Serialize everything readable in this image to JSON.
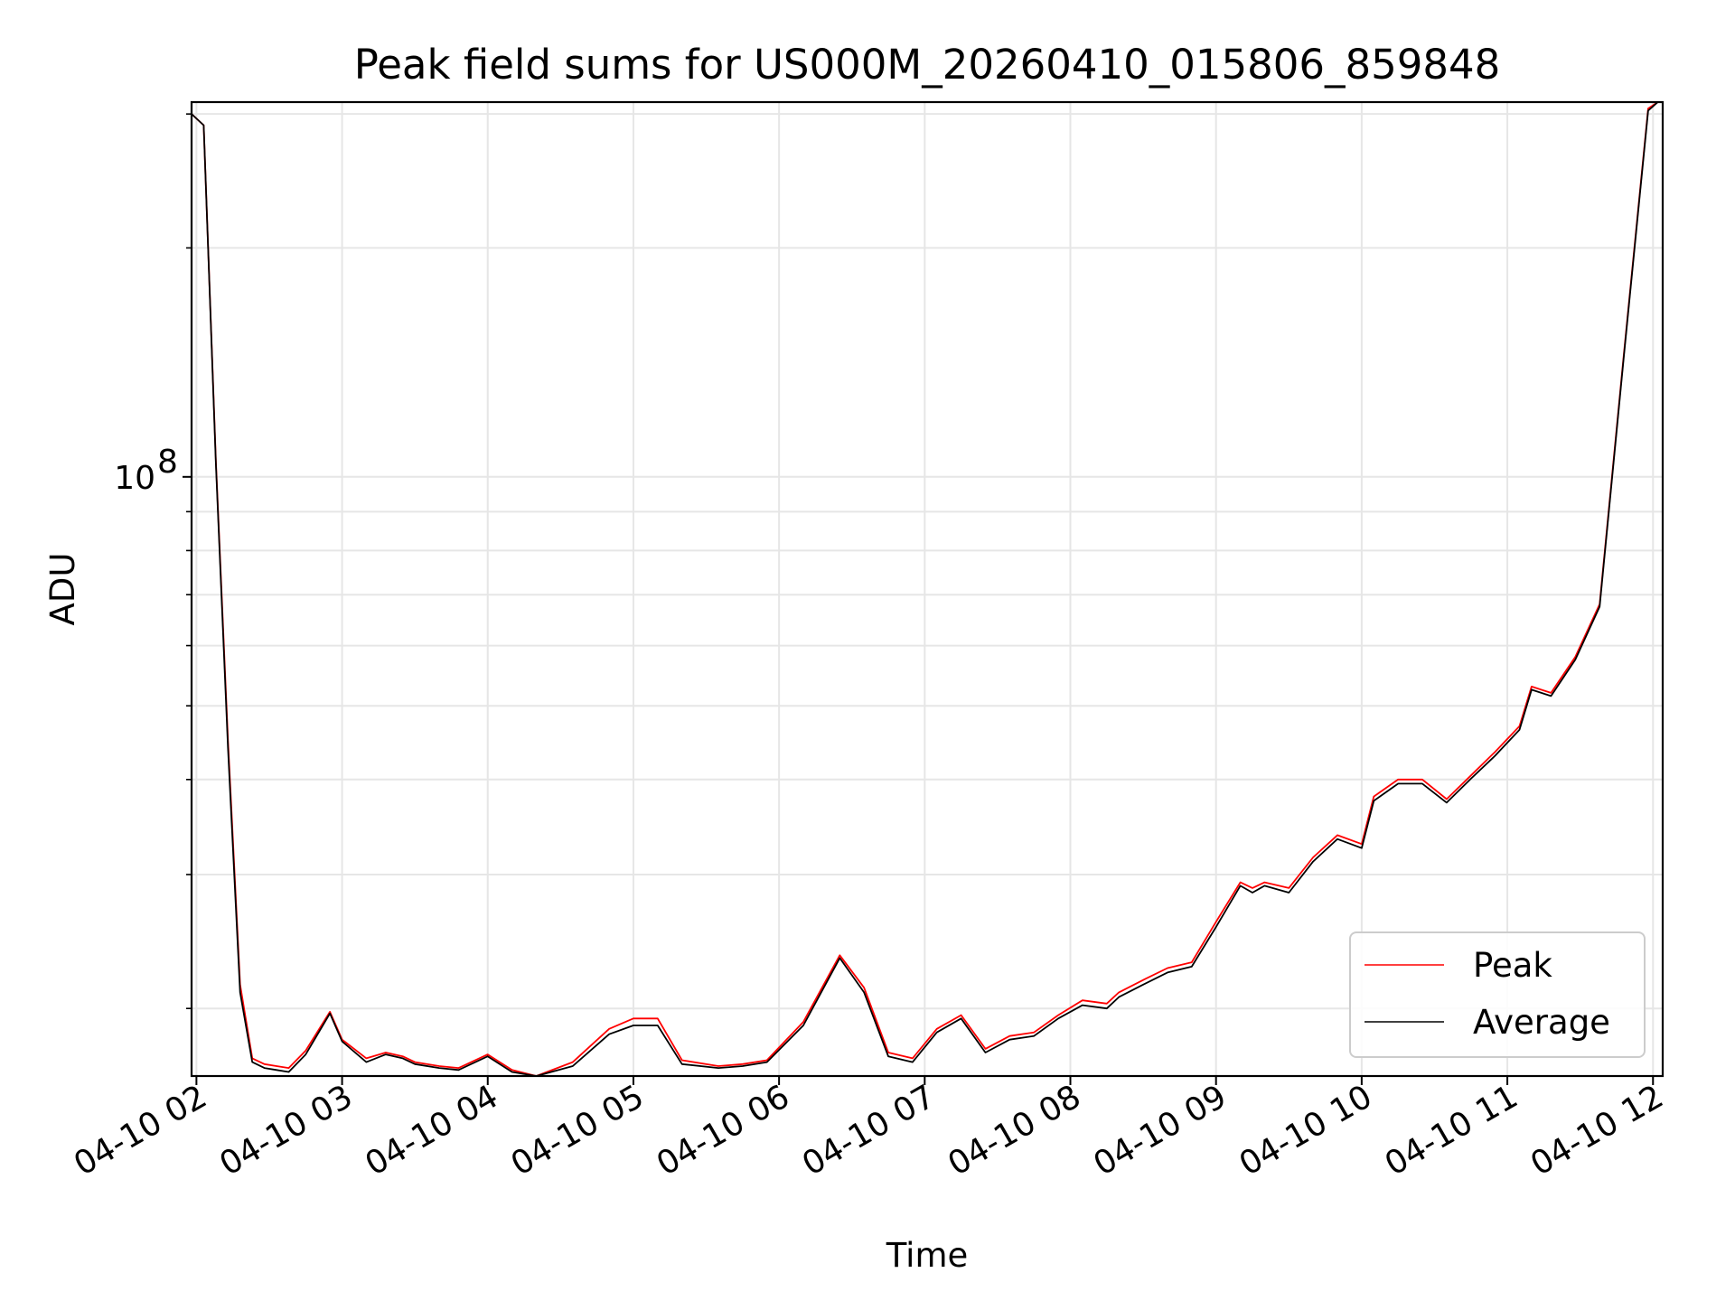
{
  "chart_data": {
    "type": "line",
    "title": "Peak field sums for US000M_20260410_015806_859848",
    "xlabel": "Time",
    "ylabel": "ADU",
    "y_scale": "log",
    "ylim": [
      16300000,
      311000000
    ],
    "xlim": [
      "2026-04-10 01:58",
      "2026-04-10 12:04"
    ],
    "x_tick_labels": [
      "04-10 02",
      "04-10 03",
      "04-10 04",
      "04-10 05",
      "04-10 06",
      "04-10 07",
      "04-10 08",
      "04-10 09",
      "04-10 10",
      "04-10 11",
      "04-10 12"
    ],
    "x_tick_times": [
      "2026-04-10 02:00",
      "2026-04-10 03:00",
      "2026-04-10 04:00",
      "2026-04-10 05:00",
      "2026-04-10 06:00",
      "2026-04-10 07:00",
      "2026-04-10 08:00",
      "2026-04-10 09:00",
      "2026-04-10 10:00",
      "2026-04-10 11:00",
      "2026-04-10 12:00"
    ],
    "y_tick_label": "10",
    "y_tick_exponent": "8",
    "y_tick_value": 100000000,
    "grid": true,
    "legend_position": "lower-right",
    "x": [
      "2026-04-10 01:58",
      "2026-04-10 02:03",
      "2026-04-10 02:08",
      "2026-04-10 02:13",
      "2026-04-10 02:18",
      "2026-04-10 02:23",
      "2026-04-10 02:28",
      "2026-04-10 02:33",
      "2026-04-10 02:38",
      "2026-04-10 02:45",
      "2026-04-10 02:55",
      "2026-04-10 03:00",
      "2026-04-10 03:10",
      "2026-04-10 03:18",
      "2026-04-10 03:25",
      "2026-04-10 03:30",
      "2026-04-10 03:40",
      "2026-04-10 03:48",
      "2026-04-10 04:00",
      "2026-04-10 04:10",
      "2026-04-10 04:20",
      "2026-04-10 04:35",
      "2026-04-10 04:50",
      "2026-04-10 05:00",
      "2026-04-10 05:10",
      "2026-04-10 05:20",
      "2026-04-10 05:35",
      "2026-04-10 05:45",
      "2026-04-10 05:55",
      "2026-04-10 06:10",
      "2026-04-10 06:25",
      "2026-04-10 06:35",
      "2026-04-10 06:45",
      "2026-04-10 06:55",
      "2026-04-10 07:05",
      "2026-04-10 07:15",
      "2026-04-10 07:25",
      "2026-04-10 07:35",
      "2026-04-10 07:45",
      "2026-04-10 07:55",
      "2026-04-10 08:05",
      "2026-04-10 08:15",
      "2026-04-10 08:20",
      "2026-04-10 08:30",
      "2026-04-10 08:40",
      "2026-04-10 08:50",
      "2026-04-10 09:00",
      "2026-04-10 09:10",
      "2026-04-10 09:15",
      "2026-04-10 09:20",
      "2026-04-10 09:30",
      "2026-04-10 09:40",
      "2026-04-10 09:50",
      "2026-04-10 10:00",
      "2026-04-10 10:05",
      "2026-04-10 10:15",
      "2026-04-10 10:25",
      "2026-04-10 10:35",
      "2026-04-10 10:45",
      "2026-04-10 10:55",
      "2026-04-10 11:05",
      "2026-04-10 11:10",
      "2026-04-10 11:18",
      "2026-04-10 11:28",
      "2026-04-10 11:38",
      "2026-04-10 11:48",
      "2026-04-10 11:58",
      "2026-04-10 12:02"
    ],
    "series": [
      {
        "name": "Peak",
        "color": "#ff0000",
        "values": [
          300000000,
          290000000,
          105000000,
          45000000,
          21500000,
          17200000,
          16900000,
          16800000,
          16700000,
          17600000,
          19800000,
          18200000,
          17200000,
          17500000,
          17300000,
          17000000,
          16800000,
          16700000,
          17400000,
          16600000,
          16300000,
          17000000,
          18800000,
          19400000,
          19400000,
          17100000,
          16800000,
          16900000,
          17100000,
          19200000,
          23500000,
          21300000,
          17500000,
          17200000,
          18800000,
          19600000,
          17700000,
          18400000,
          18600000,
          19600000,
          20500000,
          20300000,
          21000000,
          21800000,
          22600000,
          23000000,
          26000000,
          29300000,
          28800000,
          29300000,
          28800000,
          31600000,
          33800000,
          32900000,
          38000000,
          40000000,
          40000000,
          37700000,
          40500000,
          43500000,
          47000000,
          53000000,
          52000000,
          58000000,
          68000000,
          145000000,
          305000000,
          311000000
        ]
      },
      {
        "name": "Average",
        "color": "#000000",
        "values": [
          300000000,
          290000000,
          104000000,
          44000000,
          21000000,
          17000000,
          16700000,
          16600000,
          16500000,
          17400000,
          19700000,
          18100000,
          17000000,
          17400000,
          17200000,
          16900000,
          16700000,
          16600000,
          17300000,
          16500000,
          16300000,
          16800000,
          18500000,
          19000000,
          19000000,
          16900000,
          16700000,
          16800000,
          17000000,
          19000000,
          23300000,
          21000000,
          17300000,
          17000000,
          18600000,
          19400000,
          17500000,
          18200000,
          18400000,
          19400000,
          20200000,
          20000000,
          20700000,
          21500000,
          22300000,
          22700000,
          25600000,
          29000000,
          28400000,
          29000000,
          28400000,
          31200000,
          33400000,
          32500000,
          37500000,
          39500000,
          39500000,
          37300000,
          40100000,
          43000000,
          46500000,
          52500000,
          51500000,
          57500000,
          67500000,
          144000000,
          303000000,
          311000000
        ]
      }
    ]
  }
}
